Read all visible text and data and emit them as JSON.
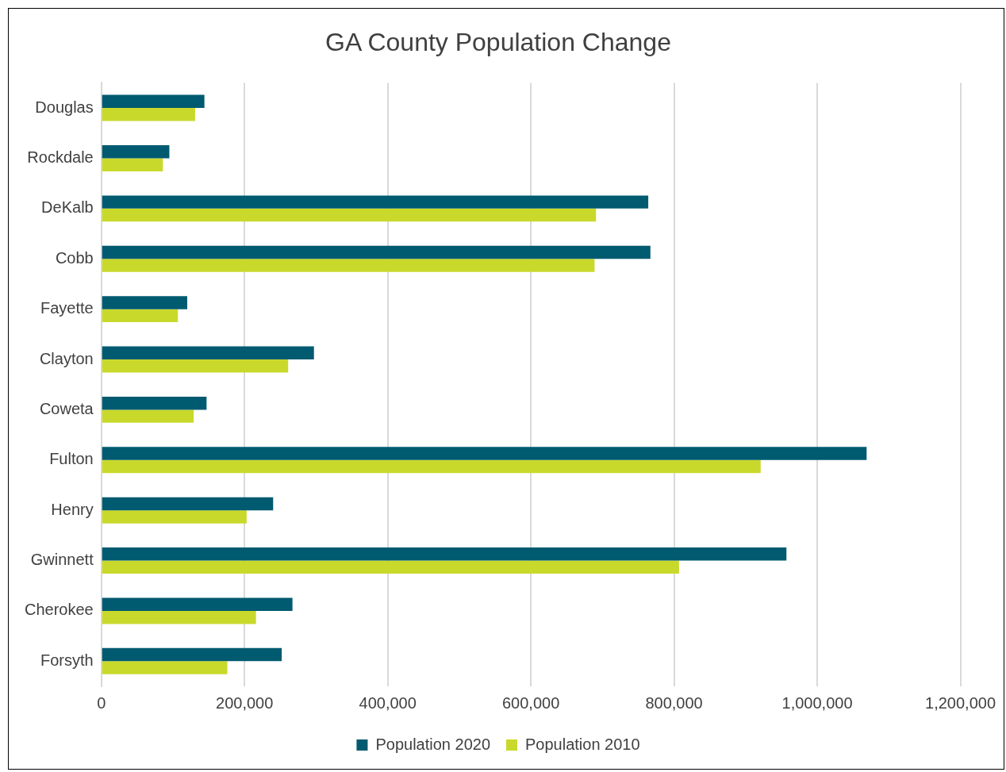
{
  "chart_data": {
    "type": "bar",
    "orientation": "horizontal",
    "title": "GA County Population Change",
    "categories": [
      "Douglas",
      "Rockdale",
      "DeKalb",
      "Cobb",
      "Fayette",
      "Clayton",
      "Coweta",
      "Fulton",
      "Henry",
      "Gwinnett",
      "Cherokee",
      "Forsyth"
    ],
    "series": [
      {
        "name": "Population 2020",
        "color": "#005a70",
        "values": [
          144000,
          95000,
          764000,
          767000,
          120000,
          297000,
          147000,
          1069000,
          240000,
          957000,
          267000,
          252000
        ]
      },
      {
        "name": "Population 2010",
        "color": "#c9d92b",
        "values": [
          131000,
          86000,
          691000,
          689000,
          107000,
          261000,
          129000,
          921000,
          203000,
          807000,
          216000,
          176000
        ]
      }
    ],
    "xlim": [
      0,
      1200000
    ],
    "xticks": [
      0,
      {
        "value": 200000,
        "label": "200,000"
      },
      {
        "value": 400000,
        "label": "400,000"
      },
      {
        "value": 600000,
        "label": "600,000"
      },
      {
        "value": 800000,
        "label": "800,000"
      },
      {
        "value": 1000000,
        "label": "1,000,000"
      },
      {
        "value": 1200000,
        "label": "1,200,000"
      }
    ],
    "grid": "x",
    "legend": "bottom"
  }
}
